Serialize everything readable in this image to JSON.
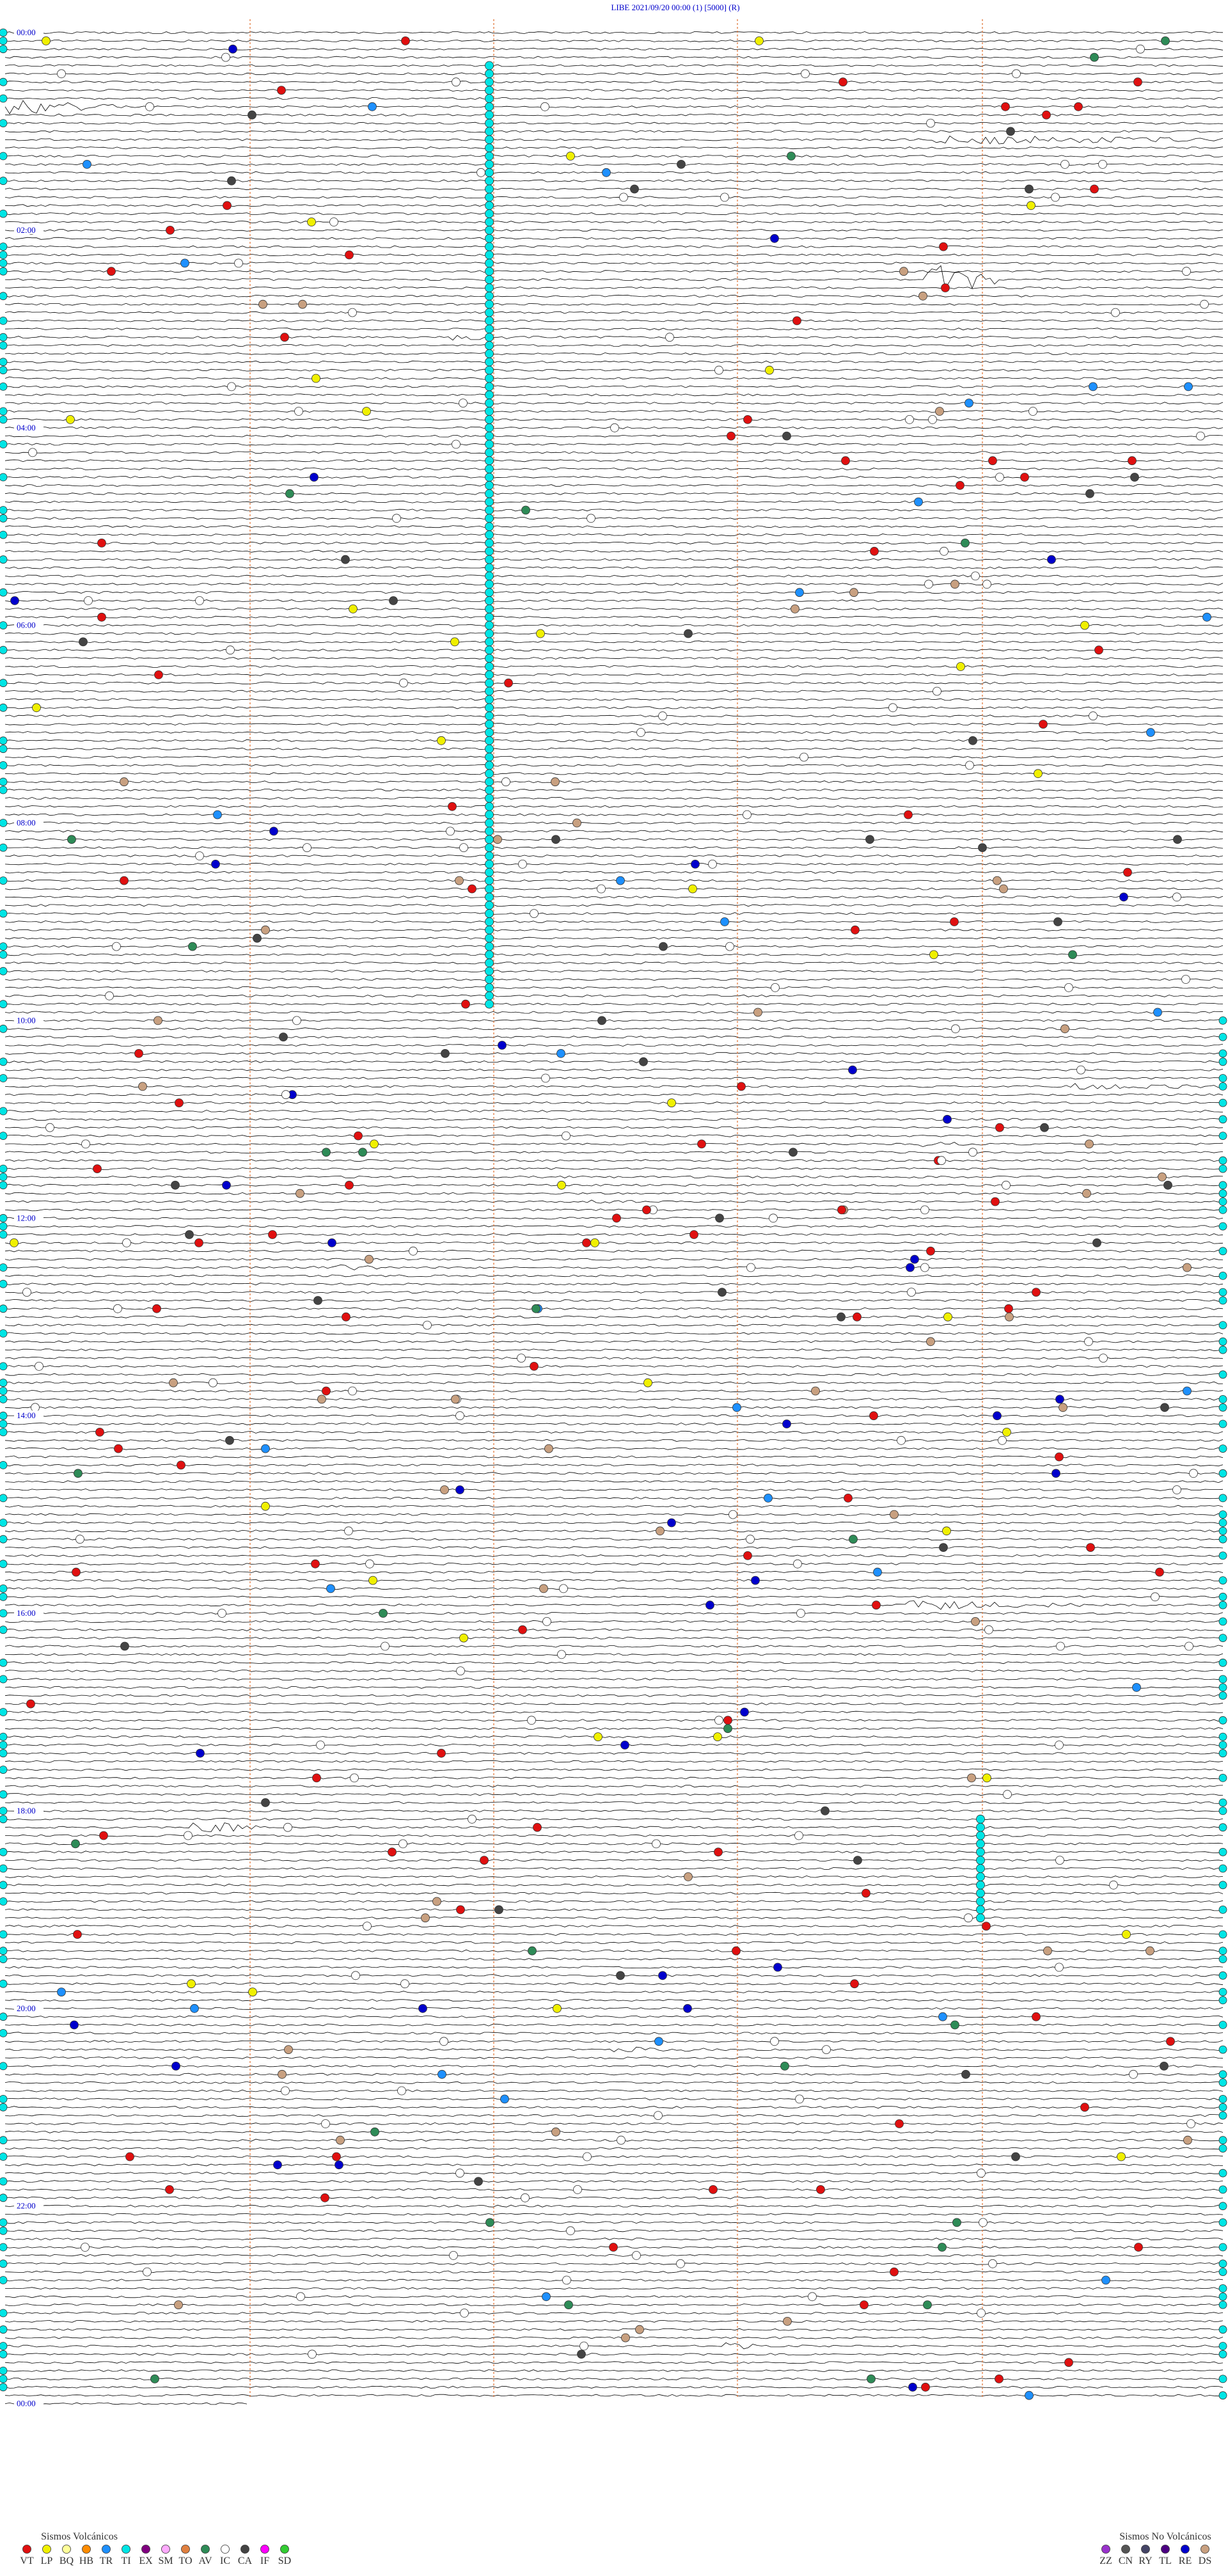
{
  "header": {
    "title": "LIBE    2021/09/20 00:00    (1)    [5000]   (R)"
  },
  "time_labels": [
    "00:00",
    "02:00",
    "04:00",
    "06:00",
    "08:00",
    "10:00",
    "12:00",
    "14:00",
    "16:00",
    "18:00",
    "20:00",
    "22:00",
    "00:00"
  ],
  "legend": [
    {
      "title": "Sismos Volcánicos",
      "items": [
        {
          "label": "VT",
          "color": "#e01010"
        },
        {
          "label": "LP",
          "color": "#f0f000"
        },
        {
          "label": "BQ",
          "color": "#ffff99"
        },
        {
          "label": "HB",
          "color": "#ff8c00"
        },
        {
          "label": "TR",
          "color": "#1e90ff"
        },
        {
          "label": "TI",
          "color": "#00e5e5"
        },
        {
          "label": "EX",
          "color": "#800080"
        },
        {
          "label": "SM",
          "color": "#ffaaff"
        },
        {
          "label": "TO",
          "color": "#e08040"
        },
        {
          "label": "AV",
          "color": "#2e8b57"
        },
        {
          "label": "IC",
          "color": "#ffffff"
        },
        {
          "label": "CA",
          "color": "#444444"
        },
        {
          "label": "IF",
          "color": "#ff00ff"
        },
        {
          "label": "SD",
          "color": "#33cc33"
        }
      ]
    },
    {
      "title": "Sismos No Volcánicos",
      "items": [
        {
          "label": "ZZ",
          "color": "#9932cc"
        },
        {
          "label": "CN",
          "color": "#555555"
        },
        {
          "label": "RY",
          "color": "#444466"
        },
        {
          "label": "TL",
          "color": "#4b0082"
        },
        {
          "label": "RE",
          "color": "#0000cc"
        },
        {
          "label": "DS",
          "color": "#c8a080"
        }
      ]
    }
  ]
}
